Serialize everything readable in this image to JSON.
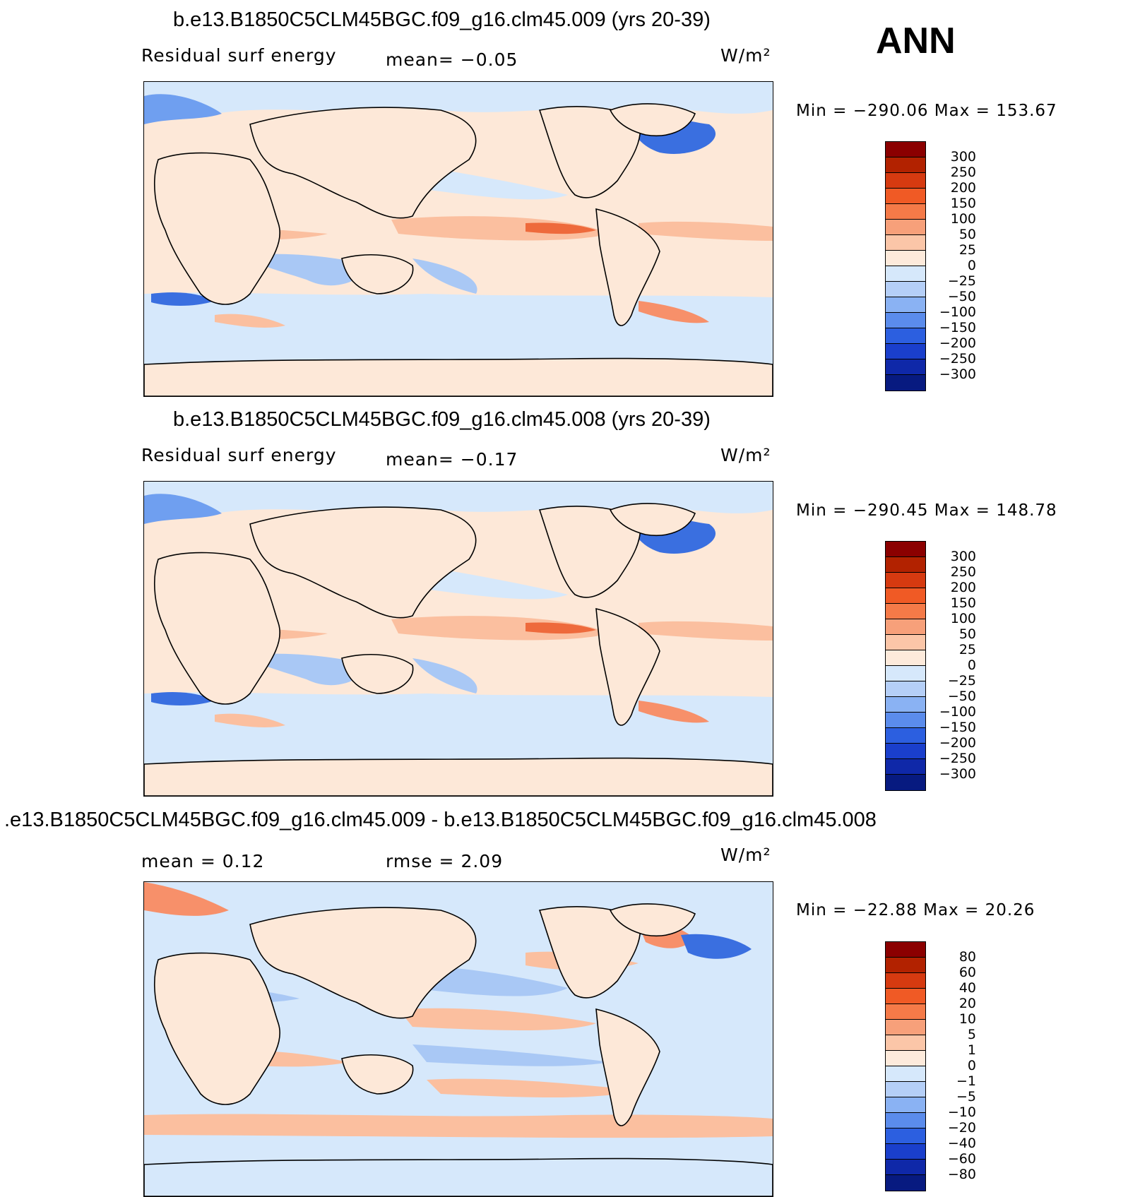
{
  "season": "ANN",
  "colors": {
    "ocean_pos": "#fde8d8",
    "land": "#fde8d8",
    "neg_light": "#d6e8fb",
    "neg_mid": "#a9c8f5",
    "neg_strong": "#6f9ff0",
    "neg_deep": "#3a6fe0",
    "pos_mid": "#fbbf9f",
    "pos_strong": "#f7906a",
    "pos_deep": "#ee6a3c"
  },
  "panels": [
    {
      "title": "b.e13.B1850C5CLM45BGC.f09_g16.clm45.009 (yrs 20-39)",
      "variable": "Residual surf energy",
      "stat_left": "mean=   −0.05",
      "units": "W/m²",
      "minmax": "Min  =  −290.06  Max  =  153.67"
    },
    {
      "title": "b.e13.B1850C5CLM45BGC.f09_g16.clm45.008 (yrs 20-39)",
      "variable": "Residual surf energy",
      "stat_left": "mean=   −0.17",
      "units": "W/m²",
      "minmax": "Min  =  −290.45  Max  =  148.78"
    },
    {
      "title": ".e13.B1850C5CLM45BGC.f09_g16.clm45.009 - b.e13.B1850C5CLM45BGC.f09_g16.clm45.008",
      "stat_left": "mean  =     0.12",
      "stat_mid": "rmse  =     2.09",
      "units": "W/m²",
      "minmax": "Min  =  −22.88  Max  =   20.26"
    }
  ],
  "colorbars": [
    {
      "labels": [
        "300",
        "250",
        "200",
        "150",
        "100",
        "50",
        "25",
        "0",
        "−25",
        "−50",
        "−100",
        "−150",
        "−200",
        "−250",
        "−300"
      ],
      "colors": [
        "#8b0000",
        "#b22200",
        "#d63a10",
        "#f05a25",
        "#f57a48",
        "#f7a07a",
        "#fbc6a8",
        "#fdeadb",
        "#d6e8fb",
        "#b5cff7",
        "#8ab2f3",
        "#5b8cec",
        "#2c5fe0",
        "#1a3fcc",
        "#0f28a8",
        "#071a80"
      ]
    },
    {
      "labels": [
        "300",
        "250",
        "200",
        "150",
        "100",
        "50",
        "25",
        "0",
        "−25",
        "−50",
        "−100",
        "−150",
        "−200",
        "−250",
        "−300"
      ],
      "colors": [
        "#8b0000",
        "#b22200",
        "#d63a10",
        "#f05a25",
        "#f57a48",
        "#f7a07a",
        "#fbc6a8",
        "#fdeadb",
        "#d6e8fb",
        "#b5cff7",
        "#8ab2f3",
        "#5b8cec",
        "#2c5fe0",
        "#1a3fcc",
        "#0f28a8",
        "#071a80"
      ]
    },
    {
      "labels": [
        "80",
        "60",
        "40",
        "20",
        "10",
        "5",
        "1",
        "0",
        "−1",
        "−5",
        "−10",
        "−20",
        "−40",
        "−60",
        "−80"
      ],
      "colors": [
        "#8b0000",
        "#b22200",
        "#d63a10",
        "#f05a25",
        "#f57a48",
        "#f7a07a",
        "#fbc6a8",
        "#fdeadb",
        "#d6e8fb",
        "#b5cff7",
        "#8ab2f3",
        "#5b8cec",
        "#2c5fe0",
        "#1a3fcc",
        "#0f28a8",
        "#071a80"
      ]
    }
  ]
}
